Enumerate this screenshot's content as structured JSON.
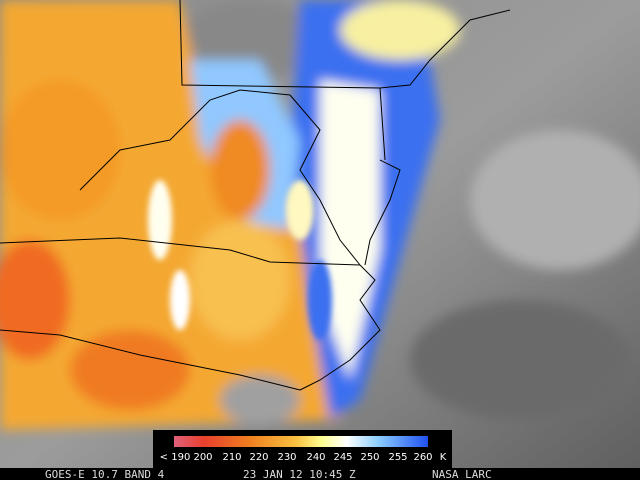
{
  "colorbar": {
    "labels": [
      "< 190",
      "200",
      "210",
      "220",
      "230",
      "240",
      "245",
      "250",
      "255",
      "260"
    ],
    "unit": "K"
  },
  "footer": {
    "satellite": "GOES-E 10.7 BAND 4",
    "timestamp": "23 JAN 12 10:45 Z",
    "source": "NASA LARC"
  }
}
